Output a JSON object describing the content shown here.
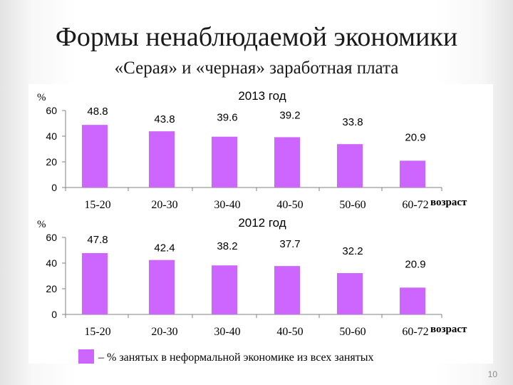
{
  "slide": {
    "title": "Формы ненаблюдаемой экономики",
    "subtitle": "«Серая» и «черная» заработная плата",
    "page_number": "10"
  },
  "chart_data": [
    {
      "type": "bar",
      "title": "2013 год",
      "ylabel": "%",
      "xlabel": "возраст",
      "categories": [
        "15-20",
        "20-30",
        "30-40",
        "40-50",
        "50-60",
        "60-72"
      ],
      "values": [
        48.8,
        43.8,
        39.6,
        39.2,
        33.8,
        20.9
      ],
      "value_labels": [
        "48.8",
        "43.8",
        "39.6",
        "39.2",
        "33.8",
        "20.9"
      ],
      "ylim": [
        0,
        60
      ],
      "yticks": [
        "0",
        "20",
        "40",
        "60"
      ],
      "grid": false,
      "bar_color": "#cc66ff"
    },
    {
      "type": "bar",
      "title": "2012 год",
      "ylabel": "%",
      "xlabel": "возраст",
      "categories": [
        "15-20",
        "20-30",
        "30-40",
        "40-50",
        "50-60",
        "60-72"
      ],
      "values": [
        47.8,
        42.4,
        38.2,
        37.7,
        32.2,
        20.9
      ],
      "value_labels": [
        "47.8",
        "42.4",
        "38.2",
        "37.7",
        "32.2",
        "20.9"
      ],
      "ylim": [
        0,
        60
      ],
      "yticks": [
        "0",
        "20",
        "40",
        "60"
      ],
      "grid": false,
      "bar_color": "#cc66ff"
    }
  ],
  "legend": {
    "text": "– % занятых в неформальной экономике из всех занятых",
    "color": "#cc66ff"
  }
}
